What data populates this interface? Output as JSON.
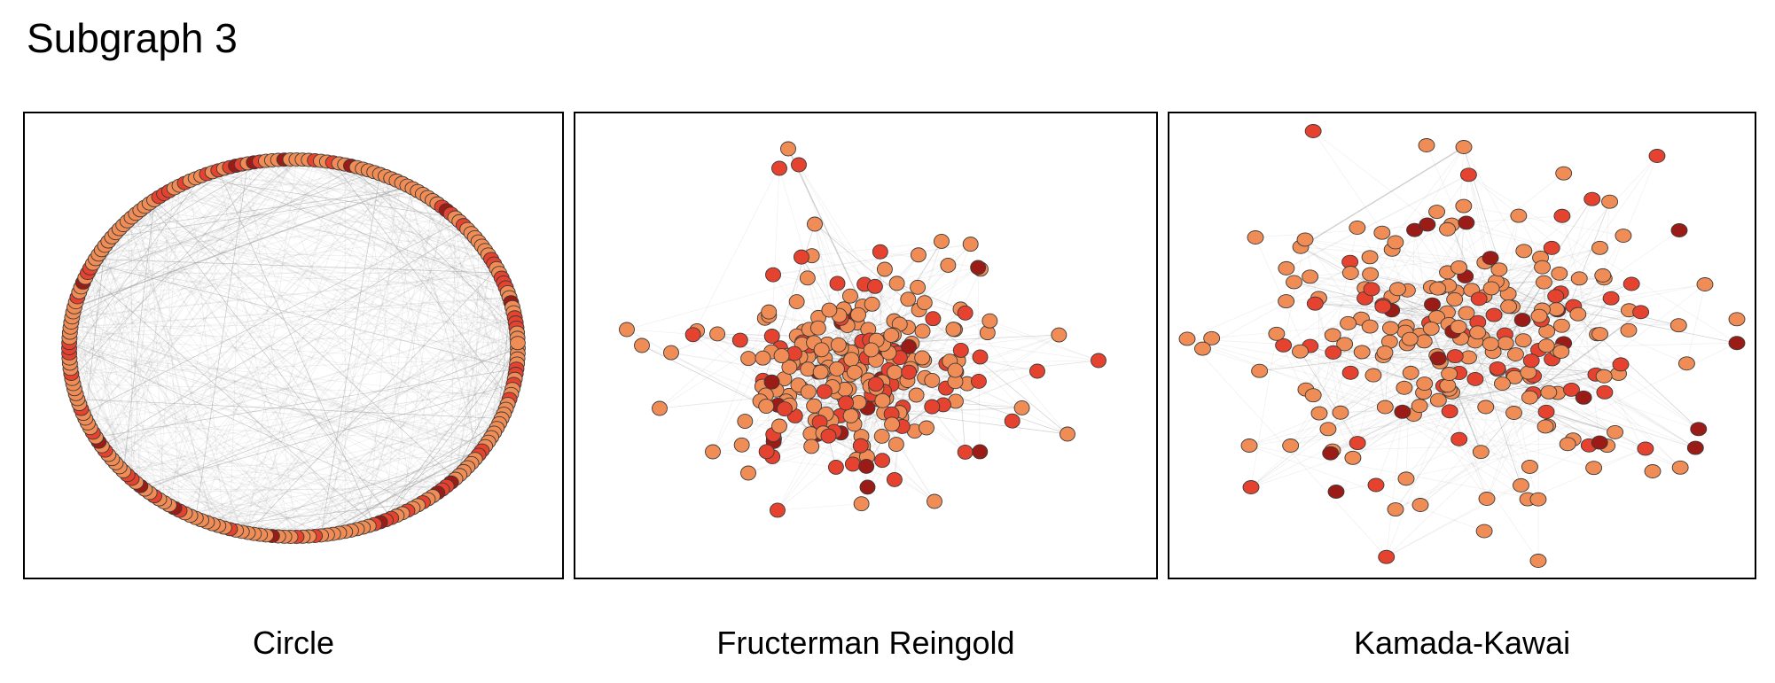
{
  "title": "Subgraph 3",
  "panels": [
    {
      "id": "circle",
      "caption": "Circle"
    },
    {
      "id": "fr",
      "caption": "Fructerman Reingold"
    },
    {
      "id": "kk",
      "caption": "Kamada-Kawai"
    }
  ],
  "colors": {
    "node_light": "#f08c55",
    "node_mid": "#e5422f",
    "node_dark": "#9b1c17",
    "node_stroke": "#3a3a3a",
    "edge": "#9a9a9a",
    "panel_border": "#000000"
  }
}
